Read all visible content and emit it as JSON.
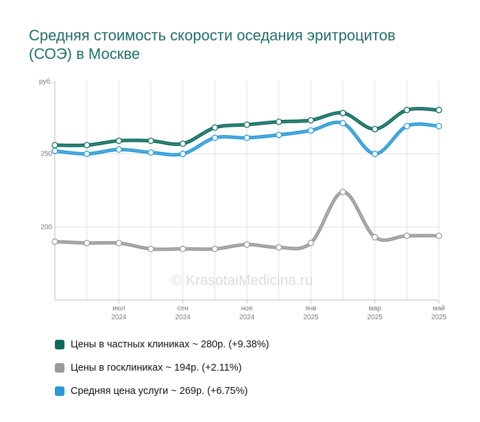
{
  "title": "Средняя стоимость скорости оседания эритроцитов (СОЭ) в Москве",
  "watermark": "© KrasotaiMedicina.ru",
  "legend": [
    {
      "text": "Цены в частных клиниках ~ 280р. (+9.38%)",
      "color": "#0b6b5c"
    },
    {
      "text": "Цены в госклиниках ~ 194р. (+2.11%)",
      "color": "#9a9a9a"
    },
    {
      "text": "Средняя цена услуги ~ 269р. (+6.75%)",
      "color": "#2a9ad8"
    }
  ],
  "chart_data": {
    "type": "line",
    "ylabel": "руб.",
    "ylim": [
      150,
      300
    ],
    "yticks": [
      200,
      250
    ],
    "x": [
      "2024-05",
      "2024-06",
      "2024-07",
      "2024-08",
      "2024-09",
      "2024-10",
      "2024-11",
      "2024-12",
      "2025-01",
      "2025-02",
      "2025-03",
      "2025-04",
      "2025-05"
    ],
    "xticks": [
      {
        "x": "2024-07",
        "month": "июл",
        "year": "2024"
      },
      {
        "x": "2024-09",
        "month": "сен",
        "year": "2024"
      },
      {
        "x": "2024-11",
        "month": "ноя",
        "year": "2024"
      },
      {
        "x": "2025-01",
        "month": "янв",
        "year": "2025"
      },
      {
        "x": "2025-03",
        "month": "мар",
        "year": "2025"
      },
      {
        "x": "2025-05",
        "month": "май",
        "year": "2025"
      }
    ],
    "series": [
      {
        "key": "private",
        "color": "#0b6b5c",
        "values": [
          256,
          256,
          259,
          259,
          257,
          268,
          270,
          272,
          273,
          278,
          267,
          280,
          280
        ]
      },
      {
        "key": "public",
        "color": "#9a9a9a",
        "values": [
          190,
          189,
          189,
          185,
          185,
          185,
          188,
          186,
          189,
          224,
          193,
          194,
          194
        ]
      },
      {
        "key": "average",
        "color": "#2a9ad8",
        "values": [
          252,
          250,
          253,
          251,
          250,
          261,
          261,
          263,
          266,
          271,
          250,
          269,
          269
        ]
      }
    ]
  }
}
